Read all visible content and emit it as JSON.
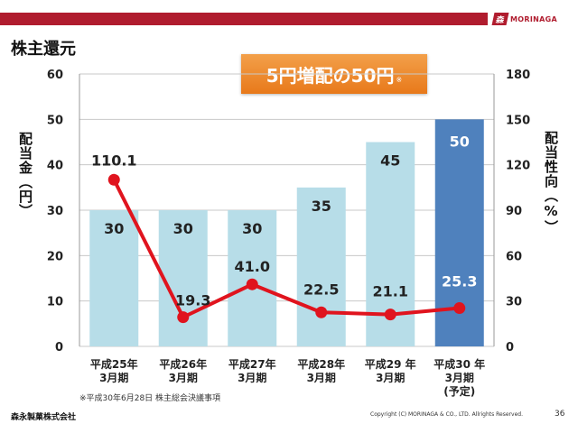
{
  "header": {
    "brand_mark": "森",
    "brand_name": "MORINAGA",
    "title": "株主還元",
    "promo_text": "5円増配の50円",
    "promo_mark": "※"
  },
  "colors": {
    "bar": "#b7dde8",
    "bar_highlight": "#4f81bd",
    "line": "#e0141e",
    "top_bar": "#b01c2e",
    "promo": "#e8791a"
  },
  "chart_data": {
    "type": "bar",
    "categories": [
      [
        "平成25年",
        "3月期"
      ],
      [
        "平成26年",
        "3月期"
      ],
      [
        "平成27年",
        "3月期"
      ],
      [
        "平成28年",
        "3月期"
      ],
      [
        "平成29 年",
        "3月期"
      ],
      [
        "平成30 年",
        "3月期",
        "(予定)"
      ]
    ],
    "series": [
      {
        "type": "bar",
        "axis": "left",
        "values": [
          30,
          30,
          30,
          35,
          45,
          50
        ],
        "highlight_index": 5
      },
      {
        "type": "line",
        "axis": "right",
        "values": [
          110.1,
          19.3,
          41.0,
          22.5,
          21.1,
          25.3
        ]
      }
    ],
    "bar_labels": [
      "30",
      "30",
      "30",
      "35",
      "45",
      "50"
    ],
    "line_labels": [
      "110.1",
      "19.3",
      "41.0",
      "22.5",
      "21.1",
      "25.3"
    ],
    "y_left": {
      "label": "配当金（円）",
      "ticks": [
        "0",
        "10",
        "20",
        "30",
        "40",
        "50",
        "60"
      ],
      "min": 0,
      "max": 60
    },
    "y_right": {
      "label": "配当性向（%）",
      "ticks": [
        "0",
        "30",
        "60",
        "90",
        "120",
        "150",
        "180"
      ],
      "min": 0,
      "max": 180
    },
    "grid": true
  },
  "footer": {
    "note": "※平成30年6月28日 株主総会決議事項",
    "company": "森永製菓株式会社",
    "copyright": "Copyright (C) MORINAGA & CO., LTD. Allrights Reserved.",
    "page": "36"
  }
}
